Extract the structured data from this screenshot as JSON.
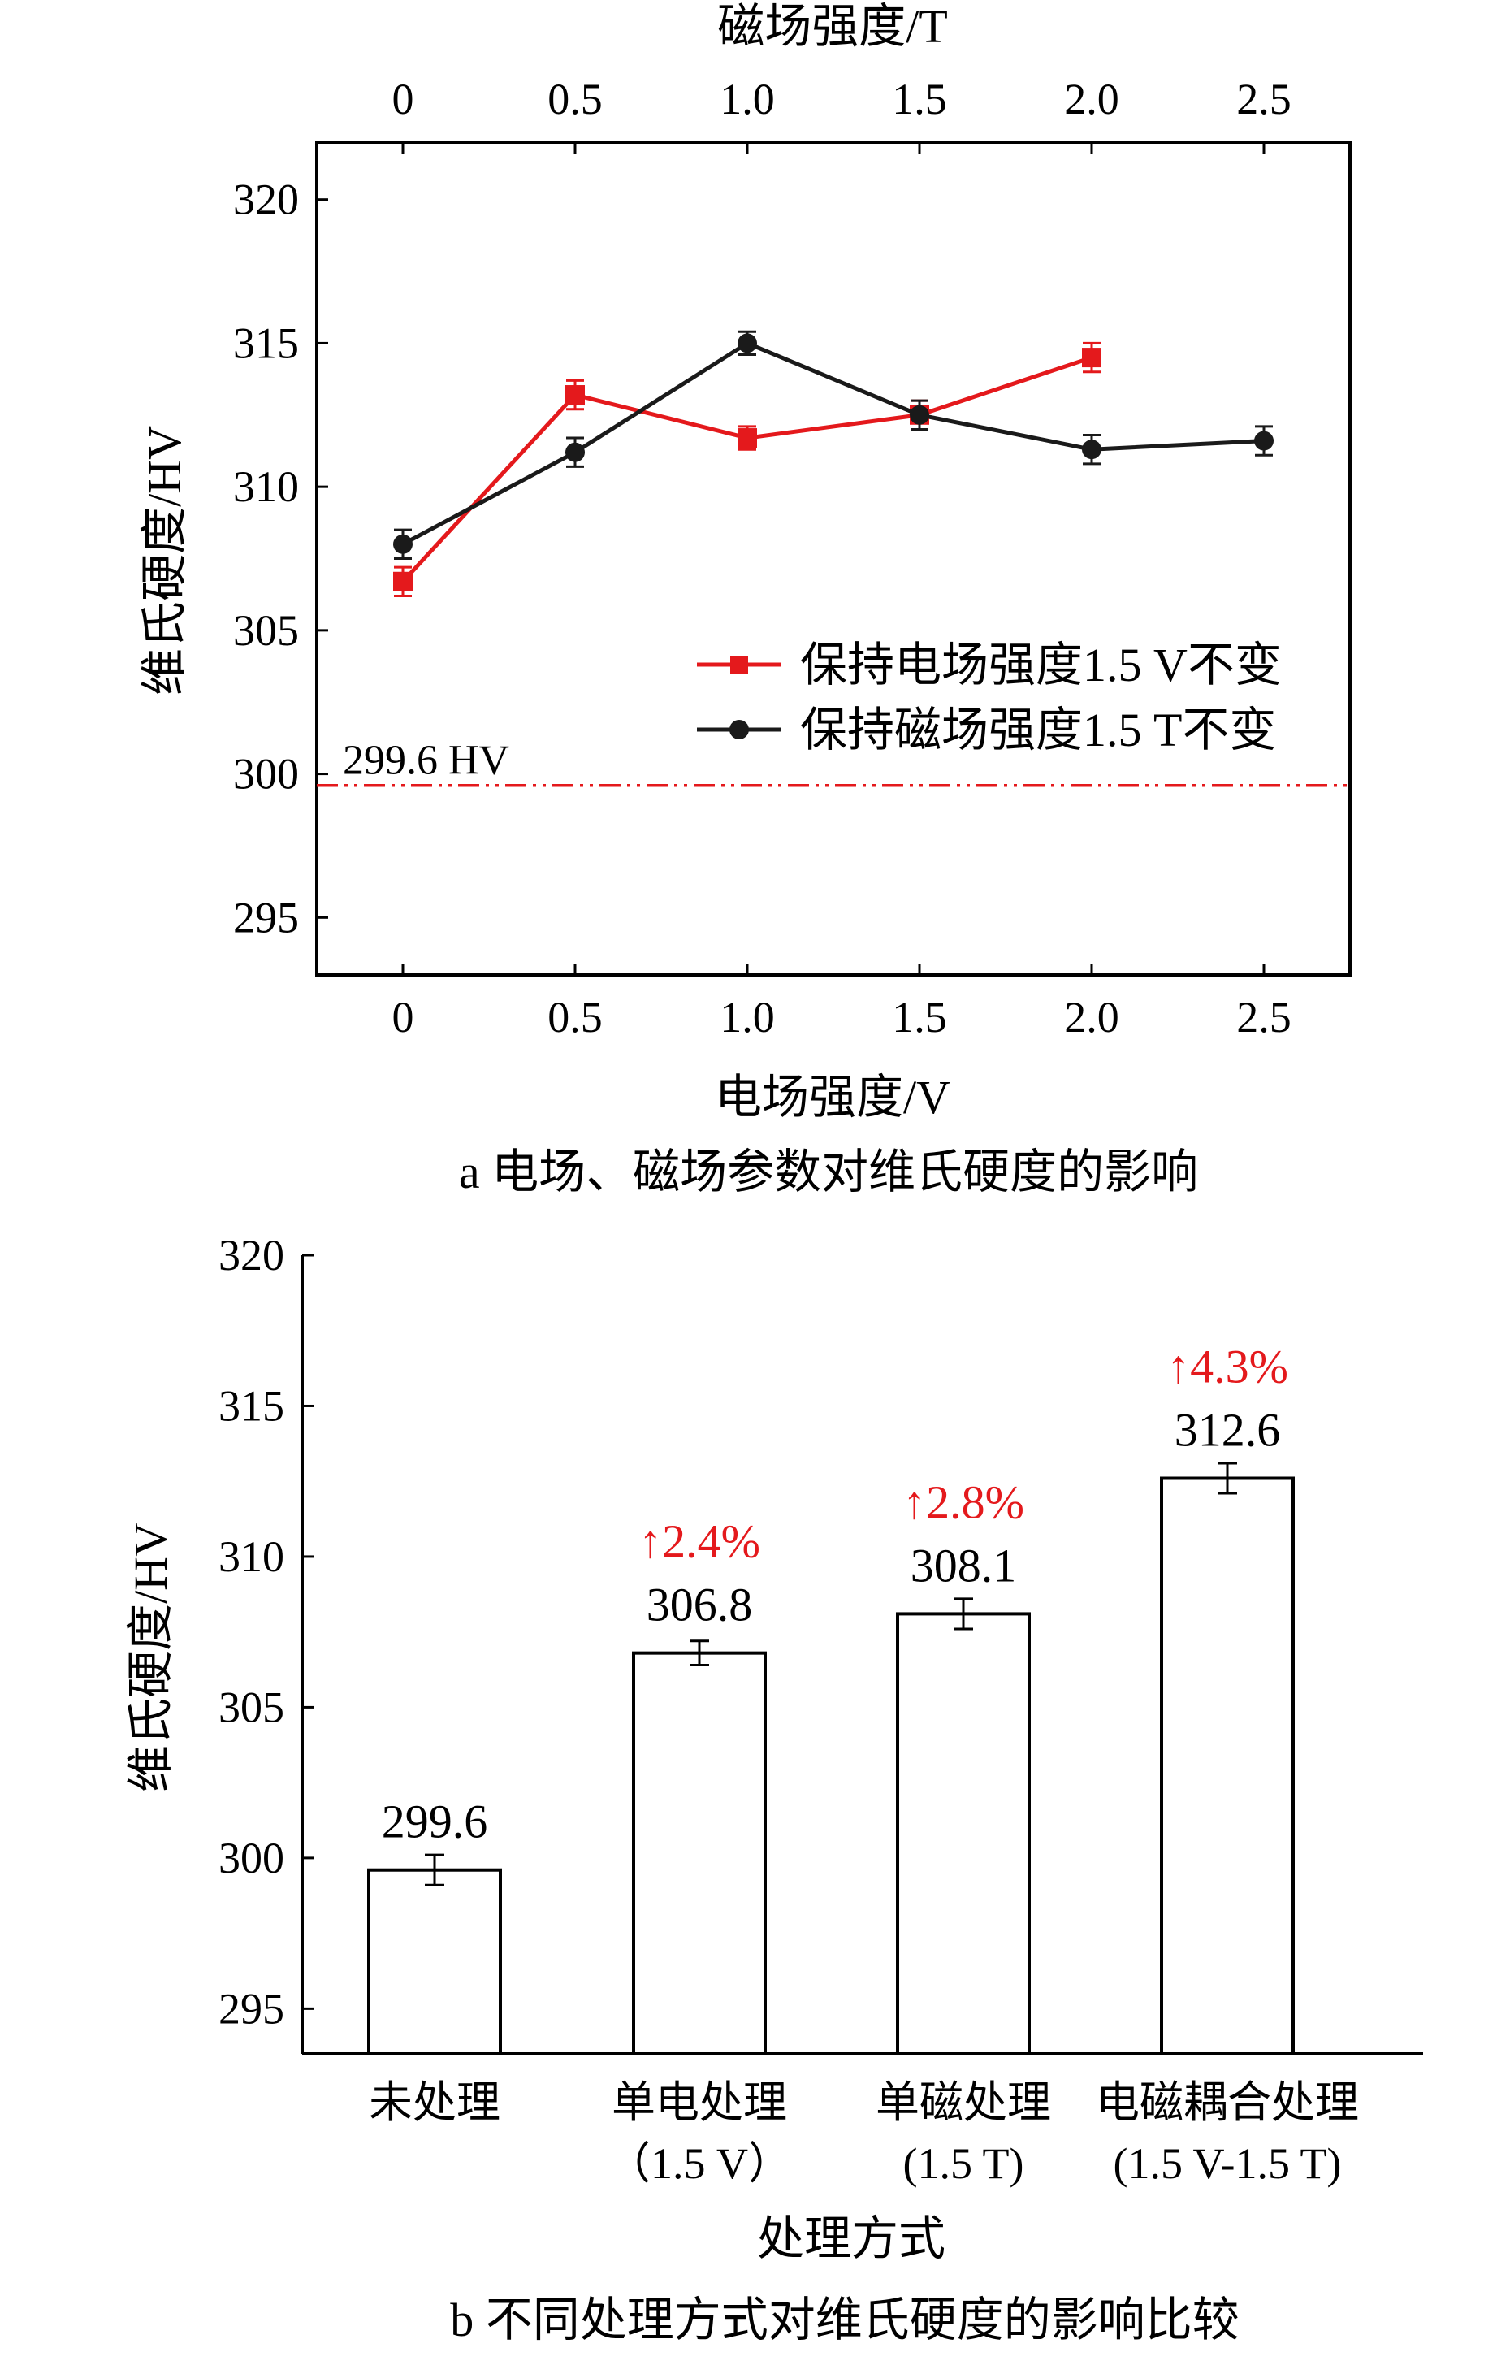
{
  "charts": {
    "a": {
      "caption": "a  电场、磁场参数对维氏硬度的影响",
      "top_axis_label": "磁场强度/T",
      "bottom_axis_label": "电场强度/V",
      "y_axis_label": "维氏硬度/HV",
      "reference_label": "299.6 HV"
    },
    "b": {
      "caption": "b  不同处理方式对维氏硬度的影响比较",
      "x_axis_label": "处理方式",
      "y_axis_label": "维氏硬度/HV"
    }
  },
  "chart_data": [
    {
      "type": "line",
      "title": "a  电场、磁场参数对维氏硬度的影响",
      "x_top_label": "磁场强度/T",
      "x_bottom_label": "电场强度/V",
      "ylabel": "维氏硬度/HV",
      "xticks": [
        "0",
        "0.5",
        "1.0",
        "1.5",
        "2.0",
        "2.5"
      ],
      "x_range": [
        -0.25,
        2.75
      ],
      "ylim": [
        293,
        322
      ],
      "yticks": [
        295,
        300,
        305,
        310,
        315,
        320
      ],
      "reference_line": {
        "value": 299.6,
        "label": "299.6 HV",
        "color": "#e4191c",
        "style": "dash-dot-dot"
      },
      "legend_position": "middle-right",
      "series": [
        {
          "name": "保持电场强度1.5 V不变",
          "color": "#e4191c",
          "marker": "square",
          "x": [
            0,
            0.5,
            1.0,
            1.5,
            2.0
          ],
          "y": [
            306.7,
            313.2,
            311.7,
            312.5,
            314.5
          ],
          "err": [
            0.5,
            0.5,
            0.4,
            0.5,
            0.5
          ]
        },
        {
          "name": "保持磁场强度1.5 T不变",
          "color": "#1a1a1a",
          "marker": "circle",
          "x": [
            0,
            0.5,
            1.0,
            1.5,
            2.0,
            2.5
          ],
          "y": [
            308.0,
            311.2,
            315.0,
            312.5,
            311.3,
            311.6
          ],
          "err": [
            0.5,
            0.5,
            0.4,
            0.5,
            0.5,
            0.5
          ]
        }
      ]
    },
    {
      "type": "bar",
      "title": "b  不同处理方式对维氏硬度的影响比较",
      "xlabel": "处理方式",
      "ylabel": "维氏硬度/HV",
      "ylim": [
        293.5,
        320
      ],
      "yticks": [
        295,
        300,
        305,
        310,
        315,
        320
      ],
      "categories": [
        [
          "未处理"
        ],
        [
          "单电处理",
          "（1.5 V）"
        ],
        [
          "单磁处理",
          "(1.5 T)"
        ],
        [
          "电磁耦合处理",
          "(1.5 V-1.5 T)"
        ]
      ],
      "values": [
        299.6,
        306.8,
        308.1,
        312.6
      ],
      "value_labels": [
        "299.6",
        "306.8",
        "308.1",
        "312.6"
      ],
      "err": [
        0.5,
        0.4,
        0.5,
        0.5
      ],
      "increase_labels": [
        "",
        "↑2.4%",
        "↑2.8%",
        "↑4.3%"
      ],
      "increase_color": "#e4191c"
    }
  ]
}
